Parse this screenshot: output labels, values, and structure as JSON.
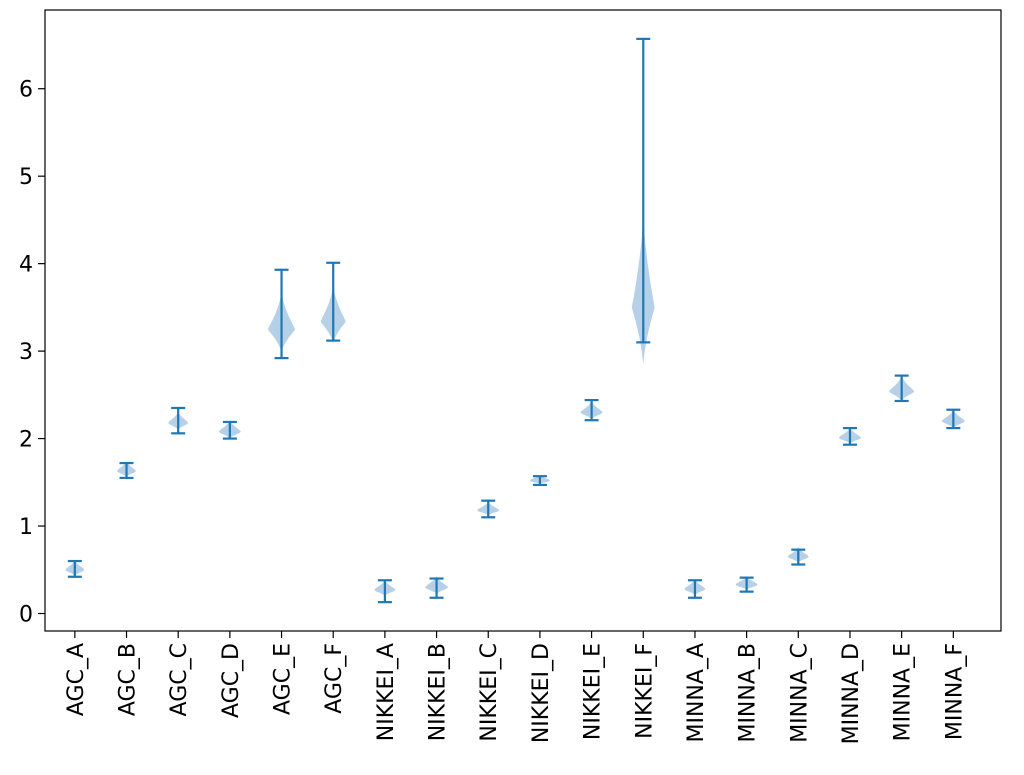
{
  "chart_data": {
    "type": "violin",
    "title": "",
    "xlabel": "",
    "ylabel": "",
    "categories": [
      "AGC_A",
      "AGC_B",
      "AGC_C",
      "AGC_D",
      "AGC_E",
      "AGC_F",
      "NIKKEI_A",
      "NIKKEI_B",
      "NIKKEI_C",
      "NIKKEI_D",
      "NIKKEI_E",
      "NIKKEI_F",
      "MINNA_A",
      "MINNA_B",
      "MINNA_C",
      "MINNA_D",
      "MINNA_E",
      "MINNA_F"
    ],
    "series": [
      {
        "color": "#1f77b4",
        "body_color": "#a9c8e3",
        "min": [
          0.42,
          1.55,
          2.06,
          2.0,
          2.92,
          3.12,
          0.13,
          0.18,
          1.1,
          1.47,
          2.21,
          3.1,
          0.18,
          0.25,
          0.56,
          1.93,
          2.43,
          2.12
        ],
        "max": [
          0.6,
          1.72,
          2.35,
          2.19,
          3.93,
          4.01,
          0.38,
          0.4,
          1.29,
          1.57,
          2.44,
          6.57,
          0.38,
          0.41,
          0.73,
          2.12,
          2.72,
          2.33
        ],
        "center": [
          0.5,
          1.63,
          2.18,
          2.08,
          3.25,
          3.34,
          0.27,
          0.3,
          1.18,
          1.52,
          2.3,
          3.5,
          0.28,
          0.33,
          0.65,
          2.01,
          2.54,
          2.2
        ],
        "body_halfwidth": [
          0.18,
          0.18,
          0.19,
          0.21,
          0.26,
          0.24,
          0.2,
          0.22,
          0.21,
          0.19,
          0.21,
          0.22,
          0.2,
          0.21,
          0.2,
          0.21,
          0.24,
          0.22
        ],
        "body_halfheight": [
          0.07,
          0.07,
          0.08,
          0.08,
          0.26,
          0.25,
          0.07,
          0.08,
          0.06,
          0.04,
          0.08,
          0.65,
          0.07,
          0.06,
          0.07,
          0.07,
          0.11,
          0.08
        ]
      }
    ],
    "ylim": [
      -0.2,
      6.9
    ],
    "yticks": [
      0,
      1,
      2,
      3,
      4,
      5,
      6
    ],
    "grid": false,
    "legend": "none"
  }
}
